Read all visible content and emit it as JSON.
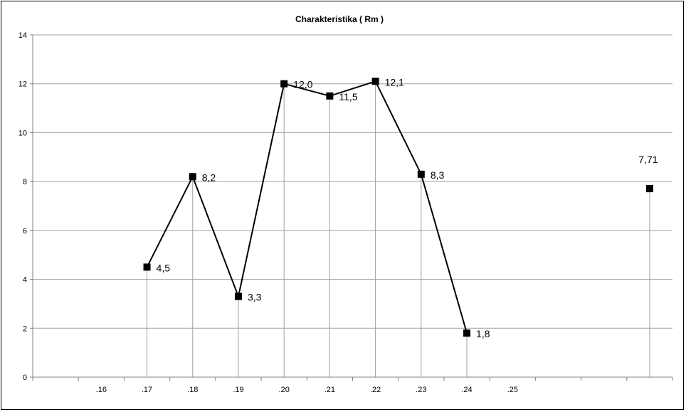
{
  "chart_data": {
    "type": "line",
    "title": "Charakteristika ( Rm )",
    "xlabel": "",
    "ylabel": "",
    "ylim": [
      0,
      14
    ],
    "yticks": [
      "0",
      "2",
      "4",
      "6",
      "8",
      "10",
      "12",
      "14"
    ],
    "categories": [
      "",
      ".16",
      ".17",
      ".18",
      ".19",
      ".20",
      ".21",
      ".22",
      ".23",
      ".24",
      ".25",
      "",
      "",
      ""
    ],
    "grid": true,
    "legend": "none",
    "series": [
      {
        "values": [
          null,
          null,
          4.5,
          8.2,
          3.3,
          12.0,
          11.5,
          12.1,
          8.3,
          1.8,
          null,
          null,
          null,
          null
        ],
        "labels": [
          "",
          "",
          "4,5",
          "8,2",
          "3,3",
          "12,0",
          "11,5",
          "12,1",
          "8,3",
          "1,8",
          "",
          "",
          "",
          ""
        ]
      },
      {
        "values": [
          null,
          null,
          null,
          null,
          null,
          null,
          null,
          null,
          null,
          null,
          null,
          null,
          null,
          7.71
        ],
        "labels": [
          "",
          "",
          "",
          "",
          "",
          "",
          "",
          "",
          "",
          "",
          "",
          "",
          "",
          "7,71"
        ]
      }
    ],
    "colors": {
      "line": "#000000",
      "marker": "#000000",
      "grid": "#a0a0a0",
      "axis": "#808080"
    }
  }
}
